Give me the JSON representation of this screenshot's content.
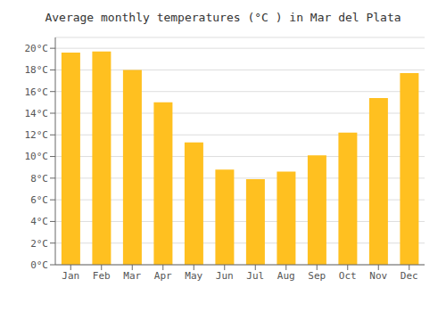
{
  "chart_data": {
    "type": "bar",
    "title": "Average monthly temperatures (°C ) in Mar del Plata",
    "categories": [
      "Jan",
      "Feb",
      "Mar",
      "Apr",
      "May",
      "Jun",
      "Jul",
      "Aug",
      "Sep",
      "Oct",
      "Nov",
      "Dec"
    ],
    "values": [
      19.6,
      19.7,
      18.0,
      15.0,
      11.3,
      8.8,
      7.9,
      8.6,
      10.1,
      12.2,
      15.4,
      17.7
    ],
    "color": "#FFC020",
    "ylim": [
      0,
      21
    ],
    "yticks": [
      {
        "value": 0,
        "label": "0°C"
      },
      {
        "value": 2,
        "label": "2°C"
      },
      {
        "value": 4,
        "label": "4°C"
      },
      {
        "value": 6,
        "label": "6°C"
      },
      {
        "value": 8,
        "label": "8°C"
      },
      {
        "value": 10,
        "label": "10°C"
      },
      {
        "value": 12,
        "label": "12°C"
      },
      {
        "value": 14,
        "label": "14°C"
      },
      {
        "value": 16,
        "label": "16°C"
      },
      {
        "value": 18,
        "label": "18°C"
      },
      {
        "value": 20,
        "label": "20°C"
      }
    ],
    "grid": true
  }
}
